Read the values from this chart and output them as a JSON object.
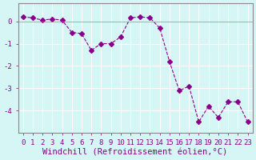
{
  "x": [
    0,
    1,
    2,
    3,
    4,
    5,
    6,
    7,
    8,
    9,
    10,
    11,
    12,
    13,
    14,
    15,
    16,
    17,
    18,
    19,
    20,
    21,
    22,
    23
  ],
  "y": [
    0.2,
    0.15,
    0.05,
    0.1,
    0.05,
    -0.5,
    -0.55,
    -1.3,
    -1.0,
    -1.0,
    -0.7,
    0.15,
    0.2,
    0.15,
    -0.3,
    -1.8,
    -3.1,
    -2.9,
    -4.5,
    -3.8,
    -4.3,
    -3.6,
    -3.6,
    -4.5
  ],
  "line_color": "#8b008b",
  "marker": "D",
  "marker_size": 3,
  "line_width": 0.8,
  "bg_color": "#d6f5f5",
  "grid_color": "#ffffff",
  "xlabel": "Windchill (Refroidissement éolien,°C)",
  "ylim": [
    -5,
    0.8
  ],
  "xlim": [
    -0.5,
    23.5
  ],
  "yticks": [
    0,
    -1,
    -2,
    -3,
    -4
  ],
  "xtick_labels": [
    "0",
    "1",
    "2",
    "3",
    "4",
    "5",
    "6",
    "7",
    "8",
    "9",
    "10",
    "11",
    "12",
    "13",
    "14",
    "15",
    "16",
    "17",
    "18",
    "19",
    "20",
    "21",
    "22",
    "23"
  ],
  "font_color": "#8b008b",
  "xlabel_fontsize": 7.5,
  "tick_fontsize": 6.5
}
